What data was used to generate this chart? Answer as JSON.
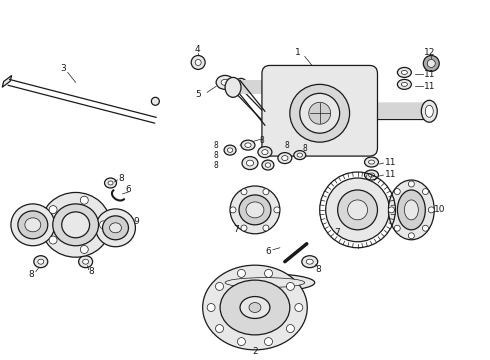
{
  "bg_color": "#ffffff",
  "line_color": "#1a1a1a",
  "gray_fill": "#e8e8e8",
  "dark_gray": "#aaaaaa",
  "figsize": [
    4.9,
    3.6
  ],
  "dpi": 100,
  "lw_main": 0.9,
  "lw_thin": 0.5,
  "lw_thick": 1.5,
  "font_size": 6.5
}
